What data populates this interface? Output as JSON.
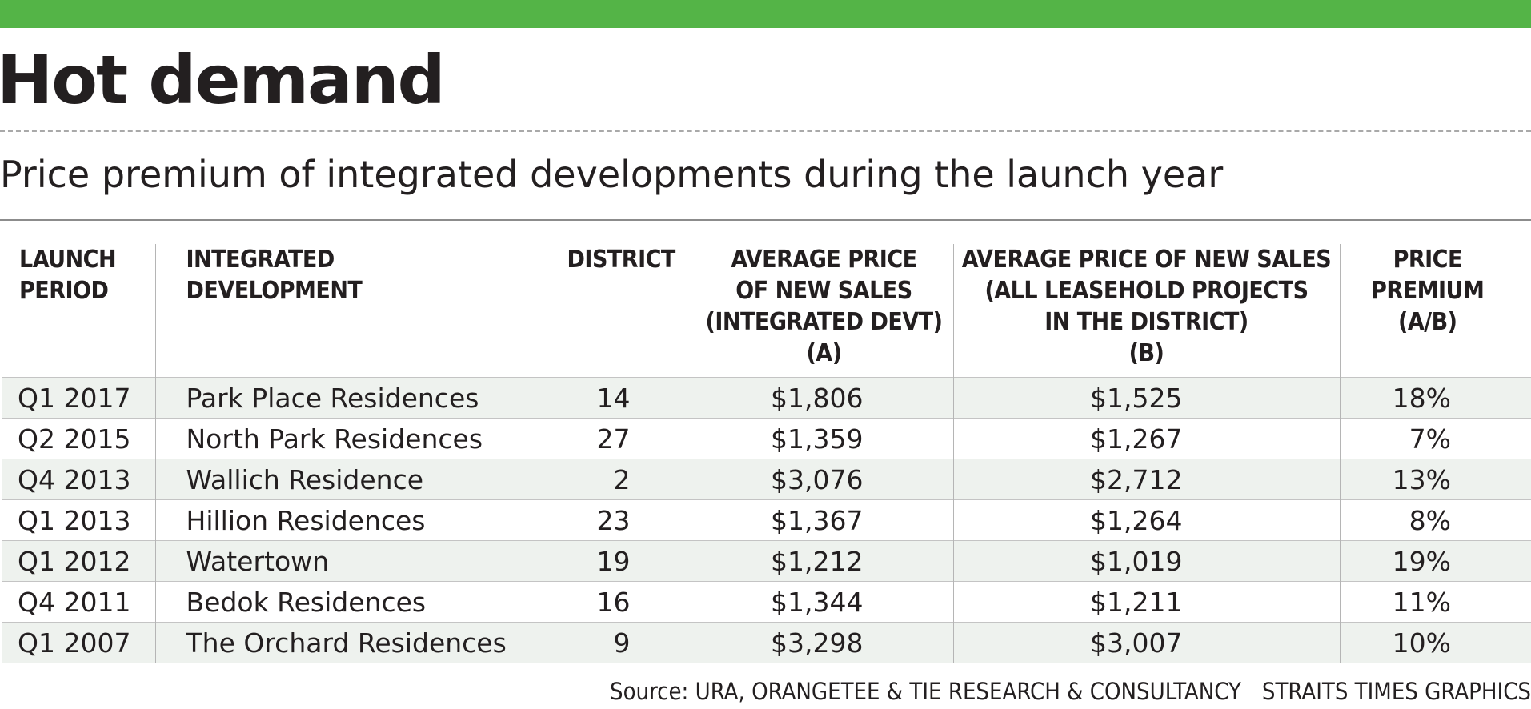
{
  "header": {
    "title": "Hot demand",
    "subtitle": "Price premium of integrated developments during the launch year"
  },
  "colors": {
    "accent_bar": "#54b447",
    "row_shade": "#eef2ee"
  },
  "table": {
    "columns": [
      "LAUNCH\nPERIOD",
      "INTEGRATED\nDEVELOPMENT",
      "DISTRICT",
      "AVERAGE PRICE\nOF NEW SALES\n(INTEGRATED DEVT)\n(A)",
      "AVERAGE PRICE OF NEW SALES\n(ALL LEASEHOLD PROJECTS\nIN THE DISTRICT)\n(B)",
      "PRICE\nPREMIUM\n(A/B)"
    ],
    "rows": [
      [
        "Q1 2017",
        "Park Place Residences",
        "14",
        "$1,806",
        "$1,525",
        "18%"
      ],
      [
        "Q2 2015",
        "North Park Residences",
        "27",
        "$1,359",
        "$1,267",
        "7%"
      ],
      [
        "Q4 2013",
        "Wallich Residence",
        "2",
        "$3,076",
        "$2,712",
        "13%"
      ],
      [
        "Q1 2013",
        "Hillion Residences",
        "23",
        "$1,367",
        "$1,264",
        "8%"
      ],
      [
        "Q1 2012",
        "Watertown",
        "19",
        "$1,212",
        "$1,019",
        "19%"
      ],
      [
        "Q4 2011",
        "Bedok Residences",
        "16",
        "$1,344",
        "$1,211",
        "11%"
      ],
      [
        "Q1 2007",
        "The Orchard Residences",
        "9",
        "$3,298",
        "$3,007",
        "10%"
      ]
    ]
  },
  "chart_data": {
    "type": "table",
    "title": "Hot demand",
    "subtitle": "Price premium of integrated developments during the launch year",
    "columns": [
      "LAUNCH PERIOD",
      "INTEGRATED DEVELOPMENT",
      "DISTRICT",
      "AVERAGE PRICE OF NEW SALES (INTEGRATED DEVT) (A)",
      "AVERAGE PRICE OF NEW SALES (ALL LEASEHOLD PROJECTS IN THE DISTRICT) (B)",
      "PRICE PREMIUM (A/B)"
    ],
    "rows": [
      [
        "Q1 2017",
        "Park Place Residences",
        14,
        1806,
        1525,
        18
      ],
      [
        "Q2 2015",
        "North Park Residences",
        27,
        1359,
        1267,
        7
      ],
      [
        "Q4 2013",
        "Wallich Residence",
        2,
        3076,
        2712,
        13
      ],
      [
        "Q1 2013",
        "Hillion Residences",
        23,
        1367,
        1264,
        8
      ],
      [
        "Q1 2012",
        "Watertown",
        19,
        1212,
        1019,
        19
      ],
      [
        "Q4 2011",
        "Bedok Residences",
        16,
        1344,
        1211,
        11
      ],
      [
        "Q1 2007",
        "The Orchard Residences",
        9,
        3298,
        3007,
        10
      ]
    ]
  },
  "footer": {
    "source": "Source: URA, ORANGETEE & TIE RESEARCH & CONSULTANCY",
    "credit": "STRAITS TIMES GRAPHICS"
  }
}
